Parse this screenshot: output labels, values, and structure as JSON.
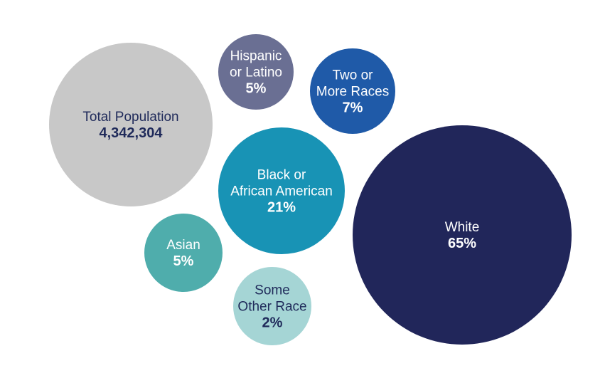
{
  "chart_data": {
    "type": "bubble",
    "title": "",
    "total": {
      "label": "Total Population",
      "value_text": "4,342,304",
      "value": 4342304,
      "color": "#c8c8c8",
      "text_color": "#1f2a5a"
    },
    "series": [
      {
        "name": "Hispanic or Latino",
        "lines": [
          "Hispanic",
          "or Latino"
        ],
        "value_text": "5%",
        "value": 5,
        "color": "#6a6f93",
        "text_color": "#ffffff"
      },
      {
        "name": "Two or More Races",
        "lines": [
          "Two or",
          "More Races"
        ],
        "value_text": "7%",
        "value": 7,
        "color": "#1f5aa8",
        "text_color": "#ffffff"
      },
      {
        "name": "Black or African American",
        "lines": [
          "Black or",
          "African American"
        ],
        "value_text": "21%",
        "value": 21,
        "color": "#1893b5",
        "text_color": "#ffffff"
      },
      {
        "name": "White",
        "lines": [
          "White"
        ],
        "value_text": "65%",
        "value": 65,
        "color": "#21265a",
        "text_color": "#ffffff"
      },
      {
        "name": "Asian",
        "lines": [
          "Asian"
        ],
        "value_text": "5%",
        "value": 5,
        "color": "#4fadac",
        "text_color": "#ffffff"
      },
      {
        "name": "Some Other Race",
        "lines": [
          "Some",
          "Other Race"
        ],
        "value_text": "2%",
        "value": 2,
        "color": "#a5d5d5",
        "text_color": "#1f2a5a"
      }
    ]
  }
}
